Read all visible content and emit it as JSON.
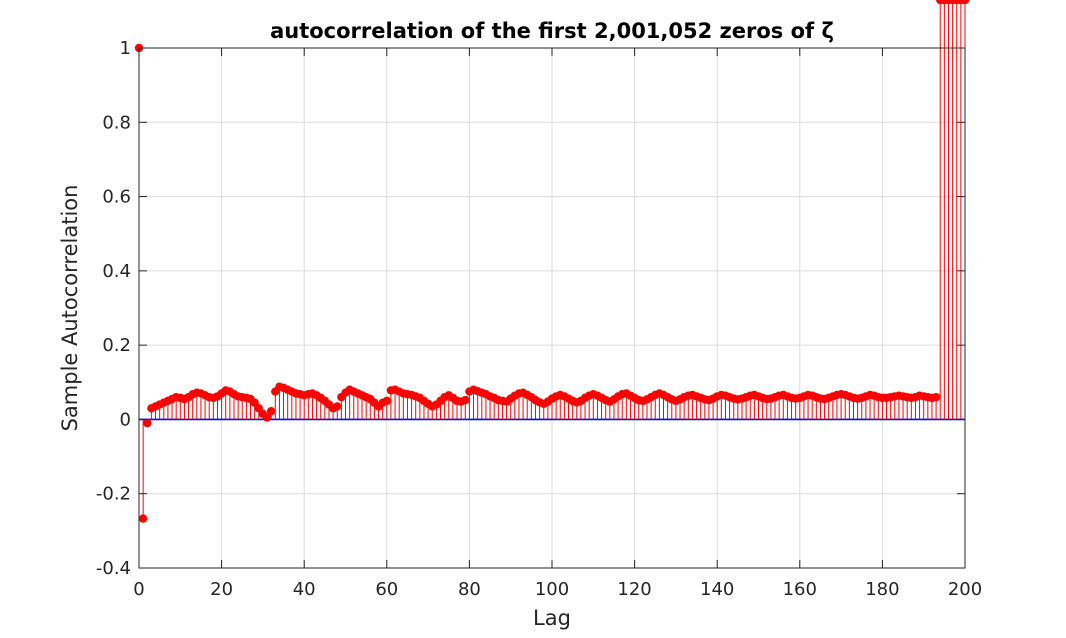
{
  "chart_data": {
    "type": "stem",
    "title": "autocorrelation of the first 2,001,052 zeros of ζ",
    "xlabel": "Lag",
    "ylabel": "Sample Autocorrelation",
    "xlim": [
      0,
      200
    ],
    "ylim": [
      -0.4,
      1
    ],
    "xticks": [
      0,
      20,
      40,
      60,
      80,
      100,
      120,
      140,
      160,
      180,
      200
    ],
    "yticks": [
      -0.4,
      -0.2,
      0,
      0.2,
      0.4,
      0.6,
      0.8,
      1
    ],
    "xtick_labels": [
      "0",
      "20",
      "40",
      "60",
      "80",
      "100",
      "120",
      "140",
      "160",
      "180",
      "200"
    ],
    "ytick_labels": [
      "-0.4",
      "-0.2",
      "0",
      "0.2",
      "0.4",
      "0.6",
      "0.8",
      "1"
    ],
    "grid": true,
    "baseline": 0,
    "colors": {
      "series": "#ff0000",
      "baseline": "#0000ff",
      "grid": "#dcdcdc",
      "axes": "#262626"
    },
    "series": [
      {
        "lags": [
          0,
          1,
          2,
          3,
          4,
          5,
          6,
          7,
          8,
          9,
          10,
          11,
          12,
          13,
          14,
          15,
          16,
          17,
          18,
          19,
          20,
          21,
          22,
          23,
          24,
          25,
          26,
          27,
          28,
          29,
          30,
          31,
          32,
          33,
          34,
          35,
          36,
          37,
          38,
          39,
          40,
          41,
          42,
          43,
          44,
          45,
          46,
          47,
          48,
          49,
          50,
          51,
          52,
          53,
          54,
          55,
          56,
          57,
          58,
          59,
          60,
          61,
          62,
          63,
          64,
          65,
          66,
          67,
          68,
          69,
          70,
          71,
          72,
          73,
          74,
          75,
          76,
          77,
          78,
          79,
          80,
          81,
          82,
          83,
          84,
          85,
          86,
          87,
          88,
          89,
          90,
          91,
          92,
          93,
          94,
          95,
          96,
          97,
          98,
          99,
          100,
          101,
          102,
          103,
          104,
          105,
          106,
          107,
          108,
          109,
          110,
          111,
          112,
          113,
          114,
          115,
          116,
          117,
          118,
          119,
          120,
          121,
          122,
          123,
          124,
          125,
          126,
          127,
          128,
          129,
          130,
          131,
          132,
          133,
          134,
          135,
          136,
          137,
          138,
          139,
          140,
          141,
          142,
          143,
          144,
          145,
          146,
          147,
          148,
          149,
          150,
          151,
          152,
          153,
          154,
          155,
          156,
          157,
          158,
          159,
          160,
          161,
          162,
          163,
          164,
          165,
          166,
          167,
          168,
          169,
          170,
          171,
          172,
          173,
          174,
          175,
          176,
          177,
          178,
          179,
          180,
          181,
          182,
          183,
          184,
          185,
          186,
          187,
          188,
          189,
          190,
          191,
          192,
          193,
          194,
          195,
          196,
          197,
          198,
          199,
          200
        ],
        "values": [
          1,
          -0.267,
          -0.01,
          0.03,
          0.035,
          0.04,
          0.045,
          0.05,
          0.055,
          0.06,
          0.058,
          0.055,
          0.06,
          0.068,
          0.072,
          0.07,
          0.065,
          0.06,
          0.058,
          0.062,
          0.07,
          0.078,
          0.075,
          0.068,
          0.062,
          0.06,
          0.058,
          0.055,
          0.045,
          0.03,
          0.015,
          0.005,
          0.022,
          0.075,
          0.088,
          0.085,
          0.08,
          0.075,
          0.07,
          0.068,
          0.065,
          0.068,
          0.07,
          0.065,
          0.058,
          0.05,
          0.04,
          0.03,
          0.035,
          0.06,
          0.072,
          0.08,
          0.075,
          0.07,
          0.065,
          0.06,
          0.055,
          0.045,
          0.035,
          0.045,
          0.05,
          0.078,
          0.08,
          0.075,
          0.07,
          0.068,
          0.066,
          0.062,
          0.058,
          0.05,
          0.042,
          0.035,
          0.04,
          0.05,
          0.06,
          0.065,
          0.058,
          0.05,
          0.048,
          0.052,
          0.075,
          0.08,
          0.076,
          0.072,
          0.068,
          0.062,
          0.058,
          0.052,
          0.05,
          0.048,
          0.056,
          0.064,
          0.07,
          0.072,
          0.066,
          0.06,
          0.052,
          0.046,
          0.042,
          0.048,
          0.056,
          0.062,
          0.066,
          0.062,
          0.056,
          0.05,
          0.046,
          0.05,
          0.058,
          0.064,
          0.068,
          0.064,
          0.058,
          0.052,
          0.048,
          0.054,
          0.062,
          0.068,
          0.07,
          0.064,
          0.058,
          0.052,
          0.05,
          0.054,
          0.06,
          0.066,
          0.07,
          0.066,
          0.06,
          0.054,
          0.05,
          0.054,
          0.06,
          0.064,
          0.066,
          0.062,
          0.058,
          0.054,
          0.052,
          0.056,
          0.062,
          0.066,
          0.064,
          0.06,
          0.056,
          0.054,
          0.056,
          0.06,
          0.064,
          0.066,
          0.062,
          0.058,
          0.055,
          0.056,
          0.06,
          0.064,
          0.066,
          0.062,
          0.058,
          0.056,
          0.058,
          0.062,
          0.066,
          0.064,
          0.06,
          0.056,
          0.055,
          0.058,
          0.062,
          0.066,
          0.068,
          0.066,
          0.062,
          0.058,
          0.056,
          0.058,
          0.062,
          0.066,
          0.064,
          0.06,
          0.058,
          0.058,
          0.06,
          0.062,
          0.064,
          0.062,
          0.06,
          0.058,
          0.06,
          0.064,
          0.062,
          0.06,
          0.058,
          0.06
        ]
      }
    ]
  }
}
